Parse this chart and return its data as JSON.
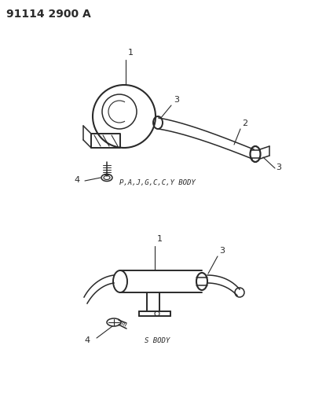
{
  "title": "91114 2900 A",
  "background_color": "#ffffff",
  "line_color": "#2a2a2a",
  "text_color": "#2a2a2a",
  "diagram1_label": "P,A,J,G,C,C,Y BODY",
  "diagram2_label": "S BODY",
  "figsize": [
    4.01,
    5.33
  ],
  "dpi": 100
}
